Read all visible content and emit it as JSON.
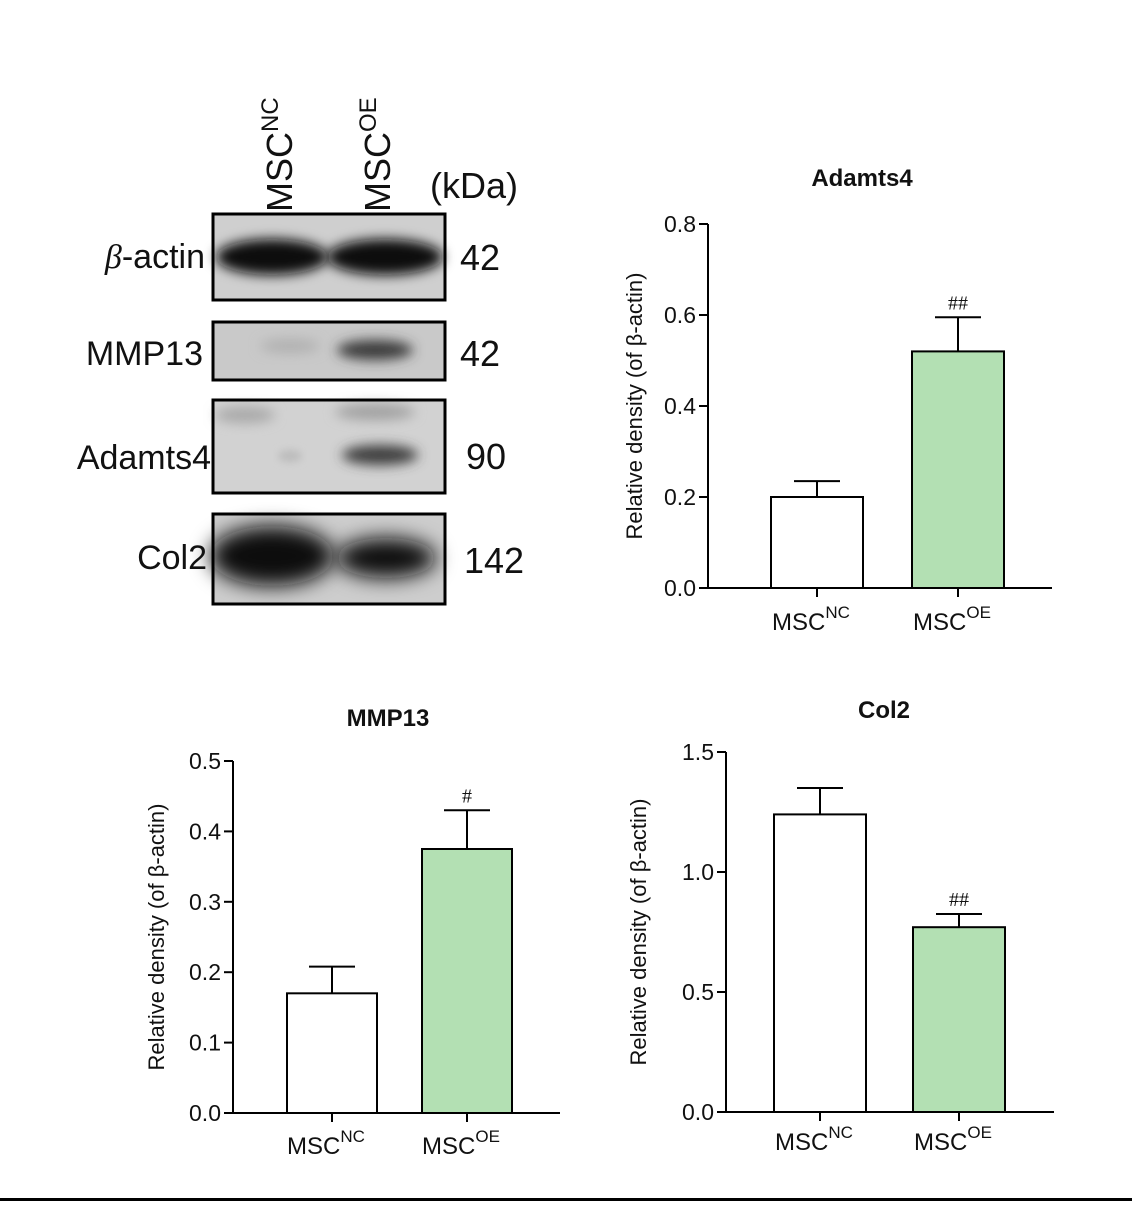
{
  "western_blot": {
    "lanes": [
      {
        "base": "MSC",
        "sup": "NC"
      },
      {
        "base": "MSC",
        "sup": "OE"
      }
    ],
    "unit_header": "(kDa)",
    "rows": [
      {
        "label_prefix": "β",
        "label_rest": "-actin",
        "kda": "42"
      },
      {
        "label_prefix": "",
        "label_rest": "MMP13",
        "kda": "42"
      },
      {
        "label_prefix": "",
        "label_rest": "Adamts4",
        "kda": "90"
      },
      {
        "label_prefix": "",
        "label_rest": "Col2",
        "kda": "142"
      }
    ]
  },
  "chart_data": [
    {
      "type": "bar",
      "title": "Adamts4",
      "ylabel": "Relative density (of β-actin)",
      "ylim": [
        0,
        0.8
      ],
      "yticks": [
        0.0,
        0.2,
        0.4,
        0.6,
        0.8
      ],
      "ytick_labels": [
        "0.0",
        "0.2",
        "0.4",
        "0.6",
        "0.8"
      ],
      "categories": [
        {
          "base": "MSC",
          "sup": "NC"
        },
        {
          "base": "MSC",
          "sup": "OE"
        }
      ],
      "values": [
        0.2,
        0.52
      ],
      "errors": [
        0.035,
        0.075
      ],
      "colors": [
        "#ffffff",
        "#b3e0b3"
      ],
      "annotations": [
        "",
        "##"
      ]
    },
    {
      "type": "bar",
      "title": "MMP13",
      "ylabel": "Relative density (of β-actin)",
      "ylim": [
        0,
        0.5
      ],
      "yticks": [
        0.0,
        0.1,
        0.2,
        0.3,
        0.4,
        0.5
      ],
      "ytick_labels": [
        "0.0",
        "0.1",
        "0.2",
        "0.3",
        "0.4",
        "0.5"
      ],
      "categories": [
        {
          "base": "MSC",
          "sup": "NC"
        },
        {
          "base": "MSC",
          "sup": "OE"
        }
      ],
      "values": [
        0.17,
        0.375
      ],
      "errors": [
        0.038,
        0.055
      ],
      "colors": [
        "#ffffff",
        "#b3e0b3"
      ],
      "annotations": [
        "",
        "#"
      ]
    },
    {
      "type": "bar",
      "title": "Col2",
      "ylabel": "Relative density (of β-actin)",
      "ylim": [
        0,
        1.5
      ],
      "yticks": [
        0.0,
        0.5,
        1.0,
        1.5
      ],
      "ytick_labels": [
        "0.0",
        "0.5",
        "1.0",
        "1.5"
      ],
      "categories": [
        {
          "base": "MSC",
          "sup": "NC"
        },
        {
          "base": "MSC",
          "sup": "OE"
        }
      ],
      "values": [
        1.24,
        0.77
      ],
      "errors": [
        0.11,
        0.055
      ],
      "colors": [
        "#ffffff",
        "#b3e0b3"
      ],
      "annotations": [
        "",
        "##"
      ]
    }
  ]
}
